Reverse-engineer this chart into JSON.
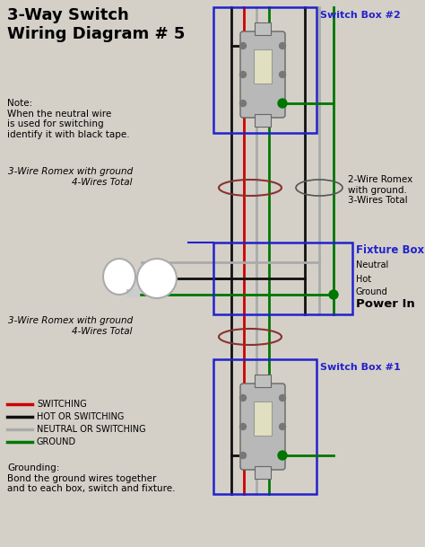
{
  "bg_color": "#d4d0c8",
  "title": "3-Way Switch\nWiring Diagram # 5",
  "title_fontsize": 13,
  "title_color": "black",
  "wire_colors": {
    "red": "#cc0000",
    "black": "#111111",
    "gray": "#aaaaaa",
    "green": "#007700",
    "blue": "#2222cc",
    "white": "#ffffff"
  },
  "box_color_switch": "#2222cc",
  "label_color_switch": "#2222cc",
  "label_color_fixture": "#2222cc",
  "note_text": "Note:\nWhen the neutral wire\nis used for switching\nidentify it with black tape.",
  "romex_label_upper": "3-Wire Romex with ground\n4-Wires Total",
  "romex_label_lower": "3-Wire Romex with ground\n4-Wires Total",
  "romex_label_right": "2-Wire Romex\nwith ground.\n3-Wires Total",
  "fixture_label": "Fixture Box",
  "switch1_label": "Switch Box #1",
  "switch2_label": "Switch Box #2",
  "power_label": "Power In",
  "neutral_label": "Neutral",
  "hot_label": "Hot",
  "ground_label": "Ground",
  "legend_items": [
    {
      "color": "#cc0000",
      "label": "SWITCHING"
    },
    {
      "color": "#111111",
      "label": "HOT OR SWITCHING"
    },
    {
      "color": "#aaaaaa",
      "label": "NEUTRAL OR SWITCHING"
    },
    {
      "color": "#007700",
      "label": "GROUND"
    }
  ],
  "grounding_text": "Grounding:\nBond the ground wires together\nand to each box, switch and fixture."
}
